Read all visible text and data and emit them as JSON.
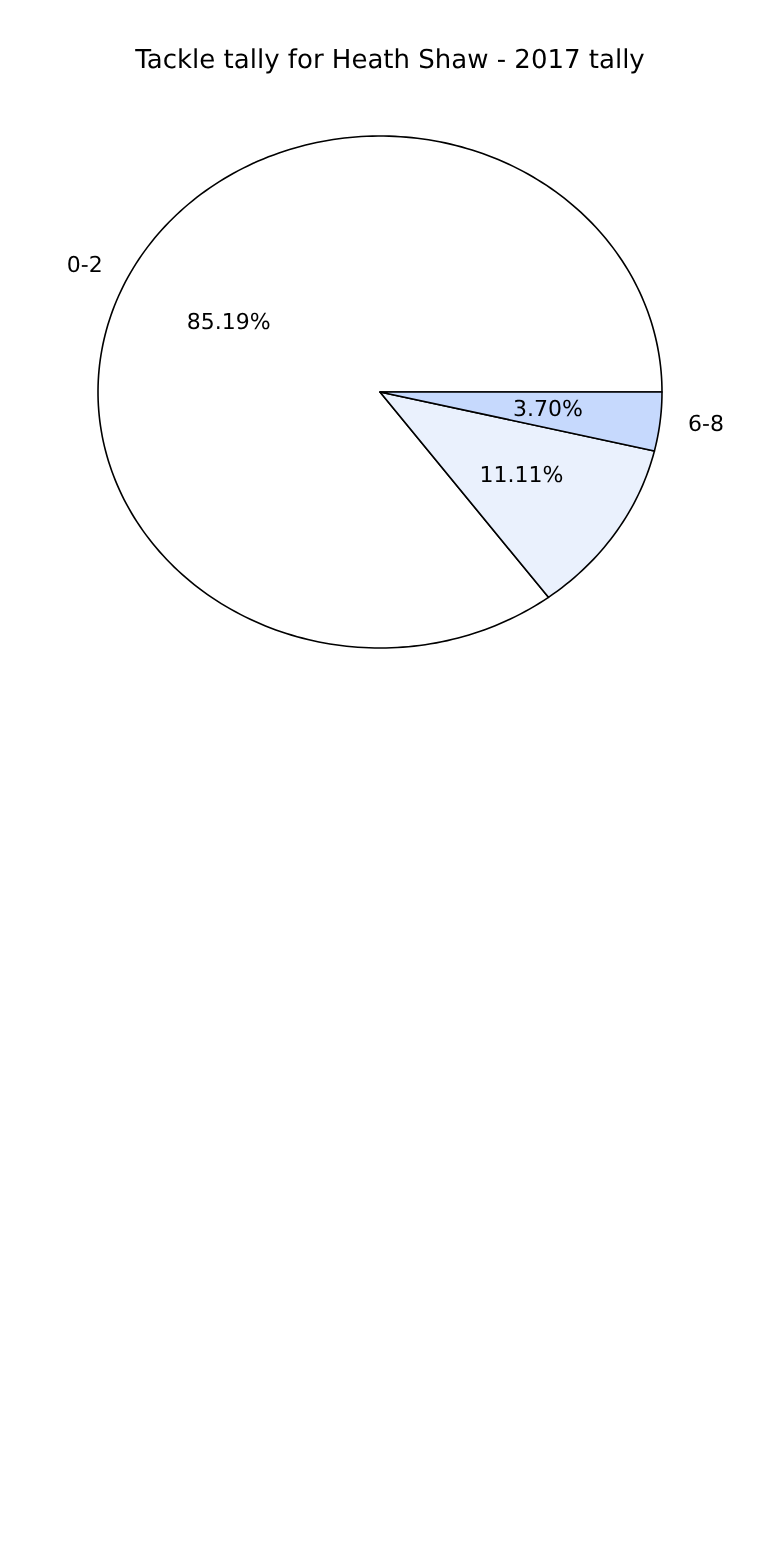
{
  "chart_data": {
    "type": "pie",
    "title": "Tackle tally for Heath Shaw - 2017 tally",
    "categories": [
      "0-2",
      null,
      "6-8"
    ],
    "values": [
      85.19,
      11.11,
      3.7
    ],
    "value_labels": [
      "85.19%",
      "11.11%",
      "3.70%"
    ],
    "colors": [
      "#ffffff",
      "#eaf1fd",
      "#c6d9fd"
    ]
  }
}
